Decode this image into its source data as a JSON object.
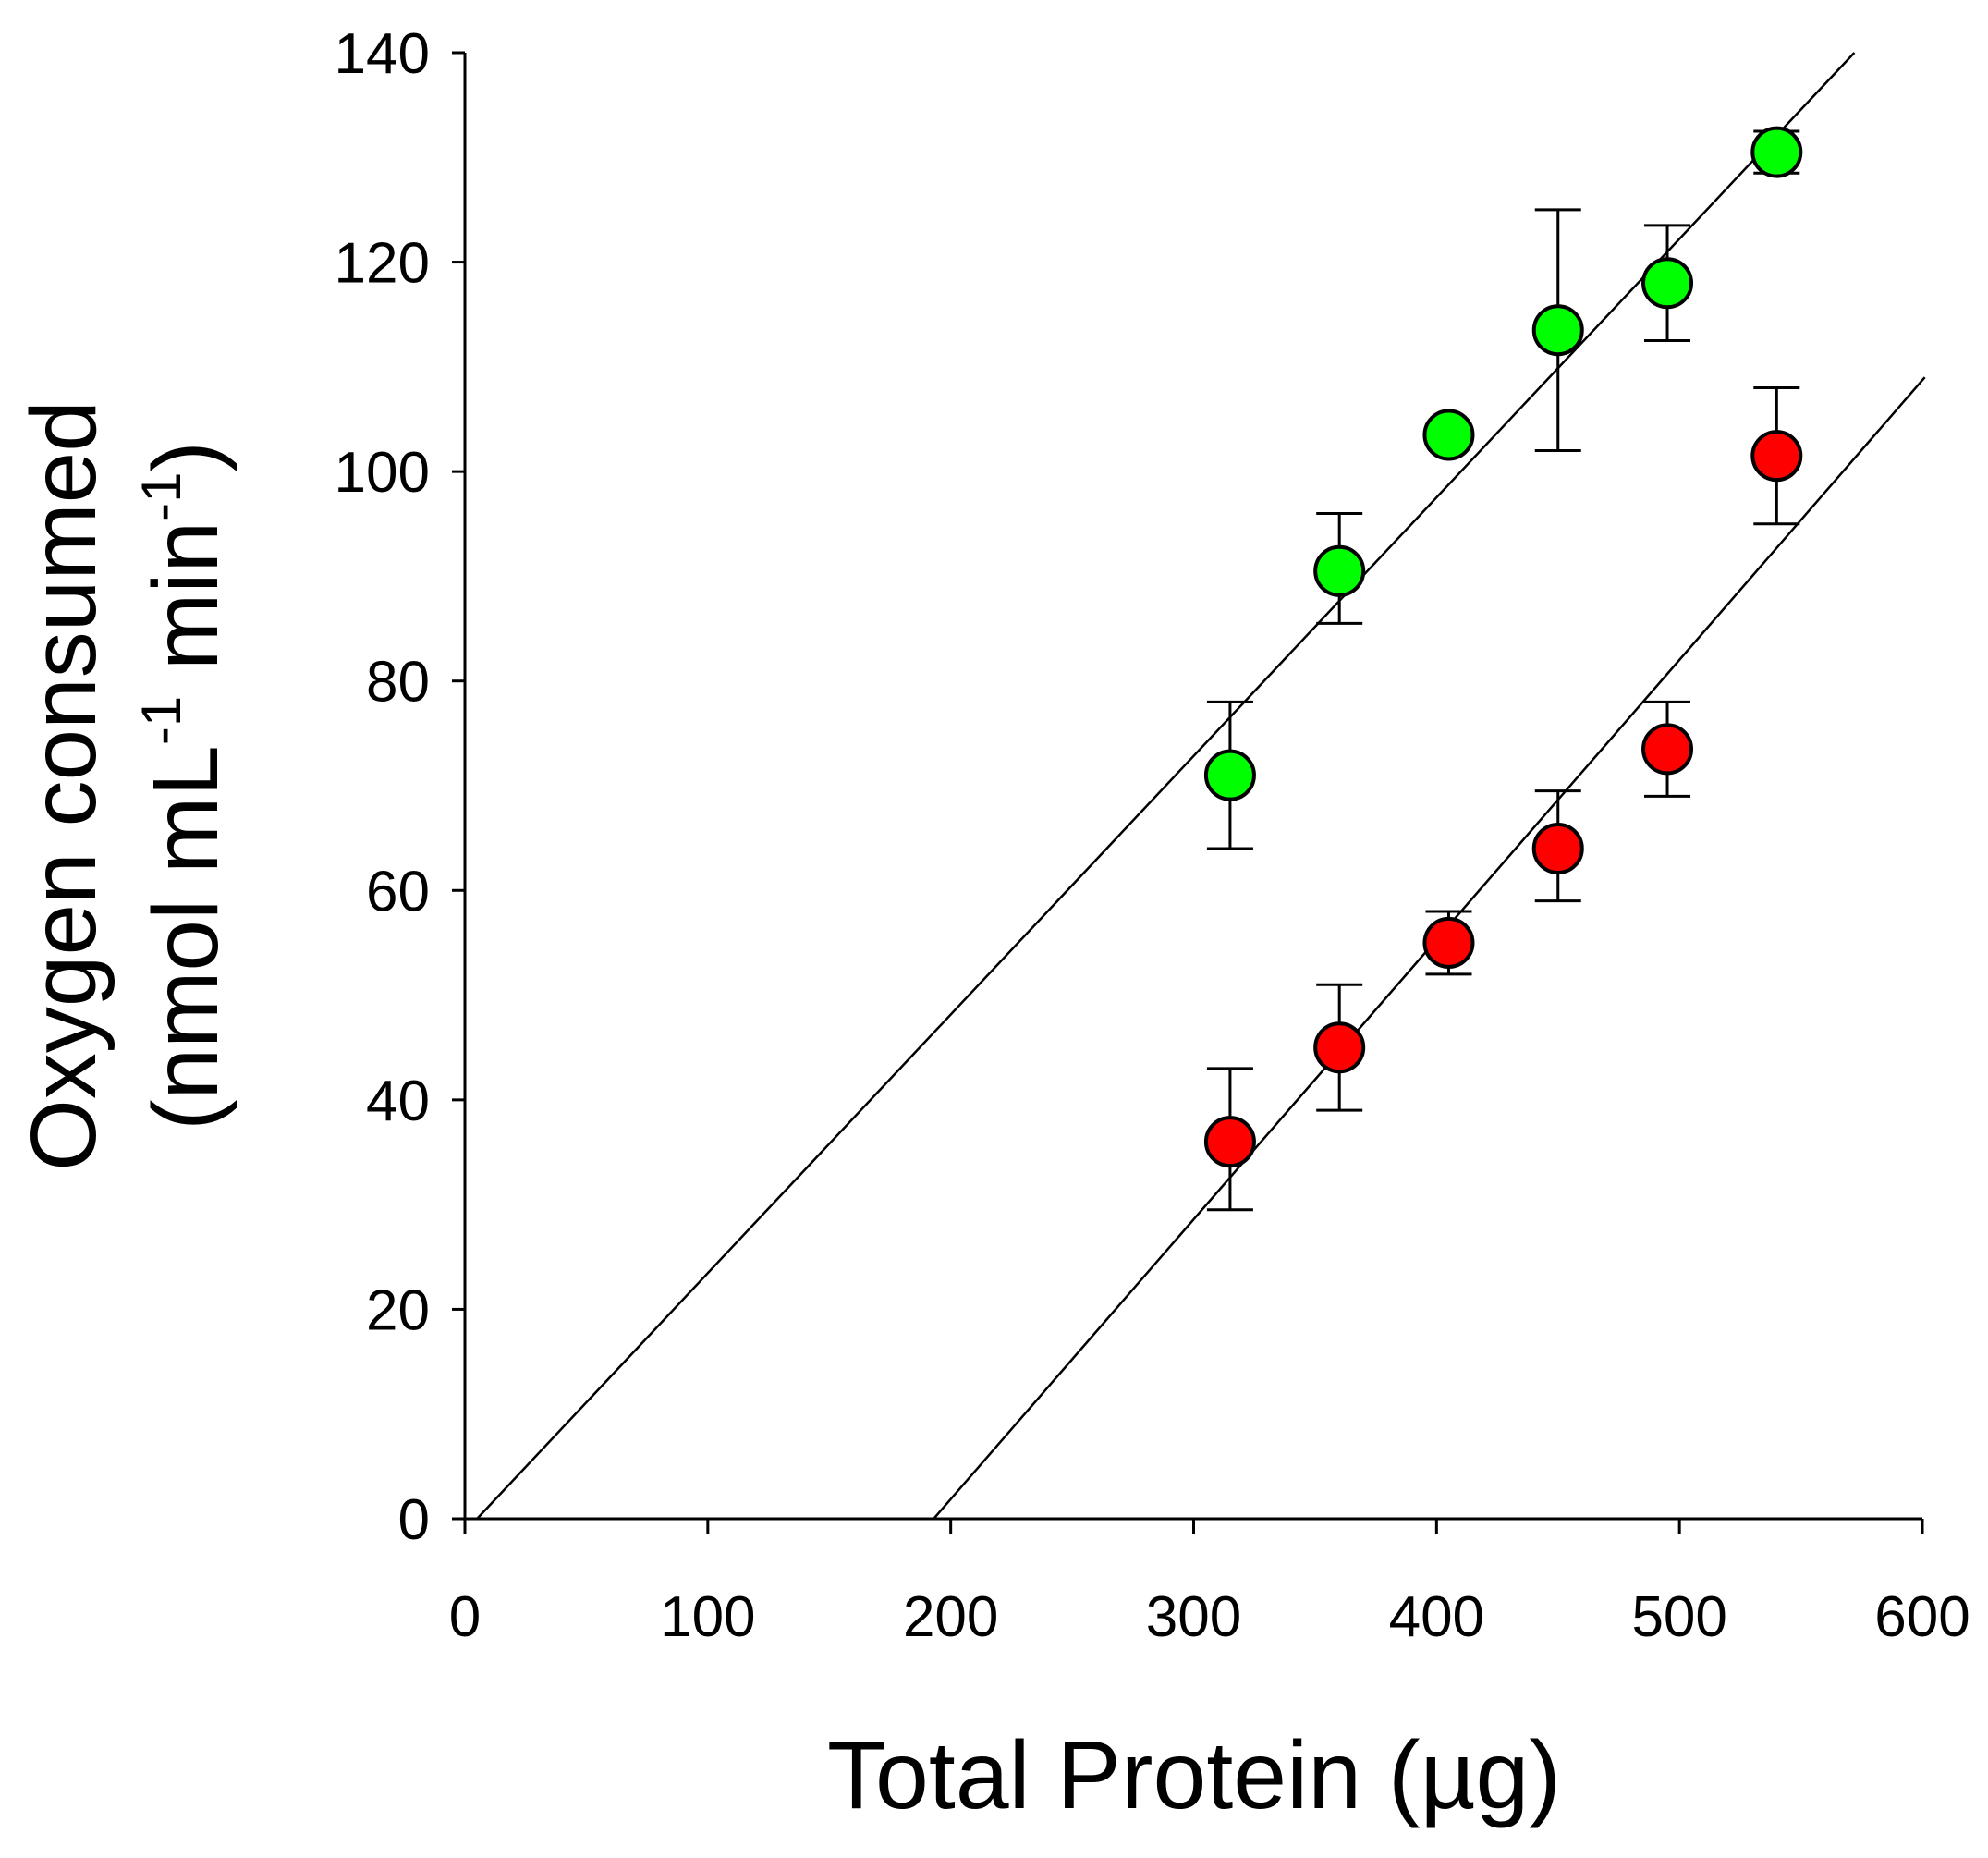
{
  "chart_data": {
    "type": "scatter",
    "title": "",
    "xlabel": "Total Protein (µg)",
    "ylabel": {
      "line1": "Oxygen consumed",
      "line2_prefix": "(nmol mL",
      "sup1": "-1",
      "line2_mid": " min",
      "sup2": "-1",
      "line2_suffix": ")"
    },
    "xlim": [
      0,
      600
    ],
    "ylim": [
      0,
      140
    ],
    "x_ticks": [
      0,
      100,
      200,
      300,
      400,
      500,
      600
    ],
    "y_ticks": [
      0,
      20,
      40,
      60,
      80,
      100,
      120,
      140
    ],
    "x_tick_labels": [
      "0",
      "100",
      "200",
      "300",
      "400",
      "500",
      "600"
    ],
    "y_tick_labels": [
      "0",
      "20",
      "40",
      "60",
      "80",
      "100",
      "120",
      "140"
    ],
    "grid": false,
    "legend": "none",
    "series": [
      {
        "name": "green series",
        "color": "#00ff00",
        "points": [
          {
            "x": 315,
            "y": 71,
            "err_low": 64,
            "err_high": 78
          },
          {
            "x": 360,
            "y": 90.5,
            "err_low": 85.5,
            "err_high": 96
          },
          {
            "x": 405,
            "y": 103.5,
            "err_low": null,
            "err_high": null
          },
          {
            "x": 450,
            "y": 113.5,
            "err_low": 102,
            "err_high": 125
          },
          {
            "x": 495,
            "y": 118,
            "err_low": 112.5,
            "err_high": 123.5
          },
          {
            "x": 540,
            "y": 130.5,
            "err_low": 128.5,
            "err_high": 132.5
          }
        ],
        "fit": {
          "x1": 5,
          "y1": 0,
          "x2": 572,
          "y2": 140
        }
      },
      {
        "name": "red series",
        "color": "#ff0000",
        "points": [
          {
            "x": 315,
            "y": 36,
            "err_low": 29.5,
            "err_high": 43
          },
          {
            "x": 360,
            "y": 45,
            "err_low": 39,
            "err_high": 51
          },
          {
            "x": 405,
            "y": 55,
            "err_low": 52,
            "err_high": 58
          },
          {
            "x": 450,
            "y": 64,
            "err_low": 59,
            "err_high": 69.5
          },
          {
            "x": 495,
            "y": 73.5,
            "err_low": 69,
            "err_high": 78
          },
          {
            "x": 540,
            "y": 101.5,
            "err_low": 95,
            "err_high": 108
          }
        ],
        "fit": {
          "x1": 193,
          "y1": 0,
          "x2": 601,
          "y2": 109
        }
      }
    ]
  }
}
